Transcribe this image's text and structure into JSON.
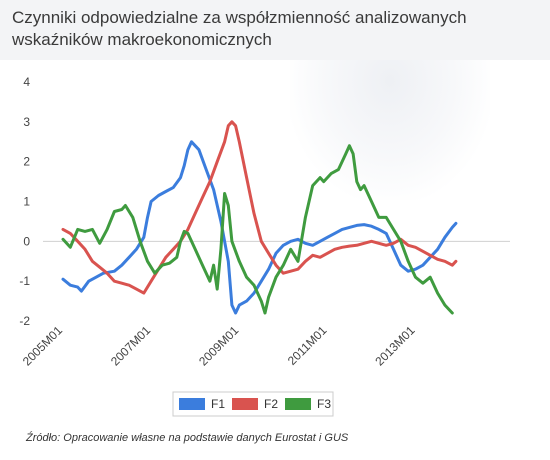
{
  "title": "Czynniki odpowiedzialne za współzmienność analizowanych wskaźników makroekonomicznych",
  "source": "Źródło: Opracowanie własne na podstawie danych Eurostat i GUS",
  "chart_data": {
    "type": "line",
    "title": "Czynniki odpowiedzialne za współzmienność analizowanych wskaźników makroekonomicznych",
    "xlabel": "",
    "ylabel": "",
    "xlim": [
      0,
      119
    ],
    "ylim": [
      -2,
      4
    ],
    "yticks": [
      -2,
      -1,
      0,
      1,
      2,
      3,
      4
    ],
    "xticks": [
      {
        "index": 0,
        "label": "2005M01"
      },
      {
        "index": 24,
        "label": "2007M01"
      },
      {
        "index": 48,
        "label": "2009M01"
      },
      {
        "index": 72,
        "label": "2011M01"
      },
      {
        "index": 96,
        "label": "2013M01"
      }
    ],
    "legend_position": "bottom",
    "grid": false,
    "series": [
      {
        "name": "F1",
        "color": "#3b7ddd",
        "points": [
          [
            0,
            -0.95
          ],
          [
            2,
            -1.1
          ],
          [
            4,
            -1.15
          ],
          [
            5,
            -1.25
          ],
          [
            7,
            -1.0
          ],
          [
            9,
            -0.9
          ],
          [
            11,
            -0.8
          ],
          [
            14,
            -0.75
          ],
          [
            16,
            -0.6
          ],
          [
            18,
            -0.4
          ],
          [
            20,
            -0.2
          ],
          [
            22,
            0.1
          ],
          [
            23,
            0.6
          ],
          [
            24,
            1.0
          ],
          [
            26,
            1.15
          ],
          [
            28,
            1.25
          ],
          [
            30,
            1.35
          ],
          [
            32,
            1.6
          ],
          [
            33,
            1.9
          ],
          [
            34,
            2.3
          ],
          [
            35,
            2.5
          ],
          [
            37,
            2.3
          ],
          [
            39,
            1.8
          ],
          [
            41,
            1.3
          ],
          [
            43,
            0.5
          ],
          [
            45,
            -0.5
          ],
          [
            46,
            -1.6
          ],
          [
            47,
            -1.8
          ],
          [
            48,
            -1.6
          ],
          [
            50,
            -1.5
          ],
          [
            52,
            -1.3
          ],
          [
            54,
            -1.0
          ],
          [
            56,
            -0.7
          ],
          [
            58,
            -0.3
          ],
          [
            60,
            -0.1
          ],
          [
            62,
            0.0
          ],
          [
            64,
            0.05
          ],
          [
            66,
            -0.05
          ],
          [
            68,
            -0.1
          ],
          [
            70,
            0.0
          ],
          [
            72,
            0.1
          ],
          [
            74,
            0.2
          ],
          [
            76,
            0.3
          ],
          [
            78,
            0.35
          ],
          [
            80,
            0.4
          ],
          [
            82,
            0.42
          ],
          [
            84,
            0.38
          ],
          [
            86,
            0.3
          ],
          [
            88,
            0.2
          ],
          [
            90,
            -0.2
          ],
          [
            92,
            -0.6
          ],
          [
            94,
            -0.75
          ],
          [
            96,
            -0.7
          ],
          [
            98,
            -0.6
          ],
          [
            100,
            -0.4
          ],
          [
            102,
            -0.2
          ],
          [
            104,
            0.1
          ],
          [
            106,
            0.35
          ],
          [
            107,
            0.45
          ]
        ]
      },
      {
        "name": "F2",
        "color": "#d9534f",
        "points": [
          [
            0,
            0.3
          ],
          [
            2,
            0.2
          ],
          [
            4,
            0.0
          ],
          [
            6,
            -0.2
          ],
          [
            8,
            -0.5
          ],
          [
            10,
            -0.65
          ],
          [
            12,
            -0.8
          ],
          [
            14,
            -1.0
          ],
          [
            16,
            -1.05
          ],
          [
            18,
            -1.1
          ],
          [
            20,
            -1.2
          ],
          [
            22,
            -1.3
          ],
          [
            24,
            -1.0
          ],
          [
            26,
            -0.7
          ],
          [
            28,
            -0.4
          ],
          [
            30,
            -0.2
          ],
          [
            32,
            0.0
          ],
          [
            34,
            0.3
          ],
          [
            36,
            0.7
          ],
          [
            38,
            1.1
          ],
          [
            40,
            1.5
          ],
          [
            42,
            2.0
          ],
          [
            44,
            2.5
          ],
          [
            45,
            2.9
          ],
          [
            46,
            3.0
          ],
          [
            47,
            2.9
          ],
          [
            48,
            2.5
          ],
          [
            50,
            1.6
          ],
          [
            52,
            0.7
          ],
          [
            54,
            0.0
          ],
          [
            56,
            -0.3
          ],
          [
            58,
            -0.6
          ],
          [
            60,
            -0.8
          ],
          [
            62,
            -0.75
          ],
          [
            64,
            -0.7
          ],
          [
            66,
            -0.5
          ],
          [
            68,
            -0.35
          ],
          [
            70,
            -0.4
          ],
          [
            72,
            -0.3
          ],
          [
            74,
            -0.2
          ],
          [
            76,
            -0.15
          ],
          [
            78,
            -0.12
          ],
          [
            80,
            -0.1
          ],
          [
            82,
            -0.05
          ],
          [
            84,
            0.0
          ],
          [
            86,
            -0.05
          ],
          [
            88,
            -0.1
          ],
          [
            90,
            -0.05
          ],
          [
            92,
            0.05
          ],
          [
            94,
            -0.1
          ],
          [
            96,
            -0.15
          ],
          [
            98,
            -0.25
          ],
          [
            100,
            -0.35
          ],
          [
            102,
            -0.45
          ],
          [
            104,
            -0.5
          ],
          [
            106,
            -0.6
          ],
          [
            107,
            -0.5
          ]
        ]
      },
      {
        "name": "F3",
        "color": "#3f9b3f",
        "points": [
          [
            0,
            0.05
          ],
          [
            2,
            -0.15
          ],
          [
            4,
            0.3
          ],
          [
            6,
            0.25
          ],
          [
            8,
            0.3
          ],
          [
            10,
            -0.05
          ],
          [
            12,
            0.3
          ],
          [
            14,
            0.75
          ],
          [
            16,
            0.8
          ],
          [
            17,
            0.9
          ],
          [
            19,
            0.6
          ],
          [
            21,
            0.0
          ],
          [
            23,
            -0.5
          ],
          [
            25,
            -0.8
          ],
          [
            27,
            -0.6
          ],
          [
            29,
            -0.55
          ],
          [
            31,
            -0.4
          ],
          [
            32,
            0.0
          ],
          [
            33,
            0.25
          ],
          [
            34,
            0.2
          ],
          [
            36,
            -0.2
          ],
          [
            38,
            -0.6
          ],
          [
            40,
            -1.0
          ],
          [
            41,
            -0.6
          ],
          [
            42,
            -1.2
          ],
          [
            43,
            -0.2
          ],
          [
            44,
            1.2
          ],
          [
            45,
            0.9
          ],
          [
            46,
            0.0
          ],
          [
            48,
            -0.5
          ],
          [
            50,
            -0.9
          ],
          [
            52,
            -1.1
          ],
          [
            54,
            -1.5
          ],
          [
            55,
            -1.8
          ],
          [
            56,
            -1.4
          ],
          [
            58,
            -0.9
          ],
          [
            60,
            -0.6
          ],
          [
            62,
            -0.2
          ],
          [
            64,
            -0.5
          ],
          [
            66,
            0.6
          ],
          [
            68,
            1.4
          ],
          [
            70,
            1.6
          ],
          [
            71,
            1.5
          ],
          [
            73,
            1.7
          ],
          [
            75,
            1.8
          ],
          [
            77,
            2.2
          ],
          [
            78,
            2.4
          ],
          [
            79,
            2.2
          ],
          [
            80,
            1.5
          ],
          [
            81,
            1.3
          ],
          [
            82,
            1.4
          ],
          [
            84,
            1.0
          ],
          [
            86,
            0.6
          ],
          [
            88,
            0.6
          ],
          [
            90,
            0.3
          ],
          [
            92,
            0.0
          ],
          [
            94,
            -0.5
          ],
          [
            96,
            -0.9
          ],
          [
            98,
            -1.05
          ],
          [
            100,
            -0.9
          ],
          [
            102,
            -1.3
          ],
          [
            104,
            -1.6
          ],
          [
            106,
            -1.8
          ]
        ]
      }
    ]
  }
}
